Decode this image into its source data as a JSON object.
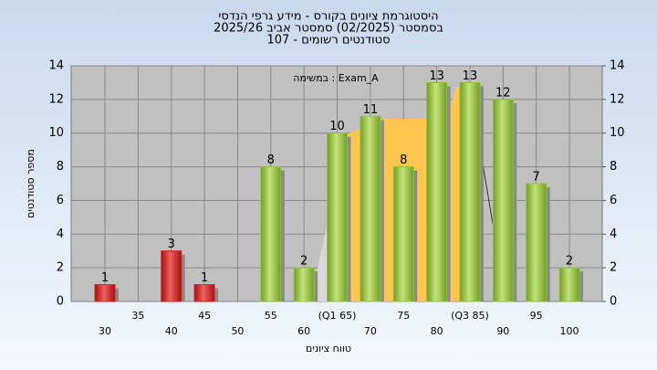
{
  "chart_data": {
    "type": "bar",
    "title": "היסטוגרמת ציונים בקורס - מידע גרפי הנדסי",
    "subtitle": "בסמסטר  (02/2025)  סמסטר אביב 2025/26",
    "subtitle2": "סטודנטים רשומים - 107",
    "annotation": "במשימה : Exam_A",
    "x_label": "טווח ציונים",
    "y_label": "מספר סטודנטים",
    "categories": [
      "30",
      "35",
      "40",
      "45",
      "50",
      "55",
      "60",
      "(Q1 65)",
      "70",
      "75",
      "80",
      "(Q3 85)",
      "90",
      "95",
      "100"
    ],
    "values": [
      1,
      null,
      3,
      1,
      null,
      8,
      2,
      10,
      11,
      8,
      13,
      13,
      12,
      7,
      2
    ],
    "bar_colors": [
      "#d82020",
      null,
      "#d82020",
      "#d82020",
      null,
      "#8fc23c",
      "#8fc23c",
      "#8fc23c",
      "#8fc23c",
      "#8fc23c",
      "#8fc23c",
      "#8fc23c",
      "#8fc23c",
      "#8fc23c",
      "#8fc23c"
    ],
    "ylim": [
      0,
      14
    ],
    "yticks": [
      0,
      2,
      4,
      6,
      8,
      10,
      12,
      14
    ],
    "y2lim": [
      0,
      14
    ],
    "y2ticks": [
      0,
      2,
      4,
      6,
      8,
      10,
      12,
      14
    ],
    "grid": true
  }
}
